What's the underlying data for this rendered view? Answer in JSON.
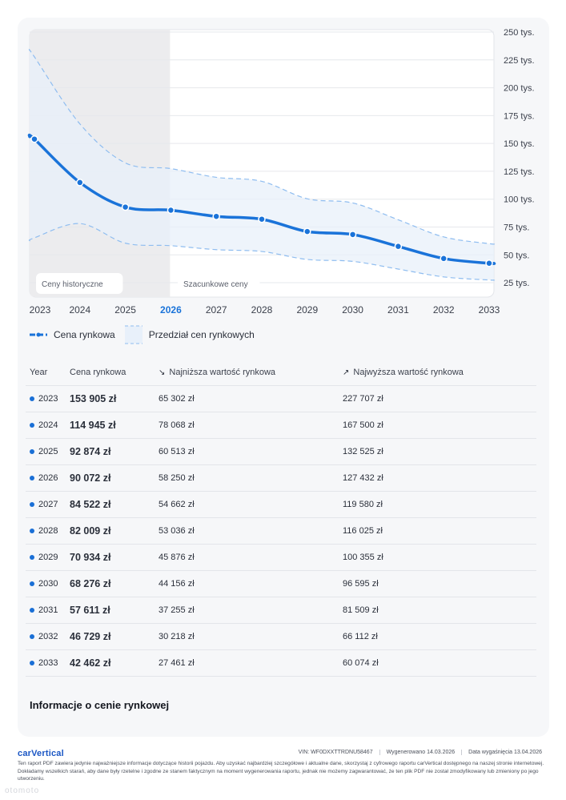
{
  "chart_data": {
    "type": "line",
    "title": "",
    "xlabel": "",
    "ylabel": "",
    "categories": [
      "2023",
      "2024",
      "2025",
      "2026",
      "2027",
      "2028",
      "2029",
      "2030",
      "2031",
      "2032",
      "2033"
    ],
    "highlight_category": "2026",
    "y_ticks": [
      25000,
      50000,
      75000,
      100000,
      125000,
      150000,
      175000,
      200000,
      225000,
      250000
    ],
    "y_tick_labels": [
      "25 tys.",
      "50 tys.",
      "75 tys.",
      "100 tys.",
      "125 tys.",
      "150 tys.",
      "175 tys.",
      "200 tys.",
      "225 tys.",
      "250 tys."
    ],
    "ylim": [
      20000,
      250000
    ],
    "series": [
      {
        "name": "Cena rynkowa",
        "values": [
          153905,
          114945,
          92874,
          90072,
          84522,
          82009,
          70934,
          68276,
          57611,
          46729,
          42462
        ]
      },
      {
        "name": "Najniższa wartość rynkowa",
        "values": [
          65302,
          78068,
          60513,
          58250,
          54662,
          53036,
          45876,
          44156,
          37255,
          30218,
          27461
        ]
      },
      {
        "name": "Najwyższa wartość rynkowa",
        "values": [
          227707,
          167500,
          132525,
          127432,
          119580,
          116025,
          100355,
          96595,
          81509,
          66112,
          60074
        ]
      }
    ],
    "regions": {
      "historical_label": "Ceny historyczne",
      "forecast_label": "Szacunkowe ceny"
    },
    "legend": [
      "Cena rynkowa",
      "Przedział cen rynkowych"
    ],
    "colors": {
      "line": "#1a73d9",
      "band_fill": "#e8f0fa",
      "band_stroke": "#8fbdf0",
      "historical_bg": "#ececee",
      "grid": "#e6e8ec"
    }
  },
  "table": {
    "headers": [
      "Year",
      "Cena rynkowa",
      "Najniższa wartość rynkowa",
      "Najwyższa wartość rynkowa"
    ],
    "low_icon": "arrow-down-right-icon",
    "high_icon": "arrow-up-right-icon",
    "rows": [
      {
        "year": "2023",
        "price": "153 905 zł",
        "low": "65 302 zł",
        "high": "227 707 zł"
      },
      {
        "year": "2024",
        "price": "114 945 zł",
        "low": "78 068 zł",
        "high": "167 500 zł"
      },
      {
        "year": "2025",
        "price": "92 874 zł",
        "low": "60 513 zł",
        "high": "132 525 zł"
      },
      {
        "year": "2026",
        "price": "90 072 zł",
        "low": "58 250 zł",
        "high": "127 432 zł"
      },
      {
        "year": "2027",
        "price": "84 522 zł",
        "low": "54 662 zł",
        "high": "119 580 zł"
      },
      {
        "year": "2028",
        "price": "82 009 zł",
        "low": "53 036 zł",
        "high": "116 025 zł"
      },
      {
        "year": "2029",
        "price": "70 934 zł",
        "low": "45 876 zł",
        "high": "100 355 zł"
      },
      {
        "year": "2030",
        "price": "68 276 zł",
        "low": "44 156 zł",
        "high": "96 595 zł"
      },
      {
        "year": "2031",
        "price": "57 611 zł",
        "low": "37 255 zł",
        "high": "81 509 zł"
      },
      {
        "year": "2032",
        "price": "46 729 zł",
        "low": "30 218 zł",
        "high": "66 112 zł"
      },
      {
        "year": "2033",
        "price": "42 462 zł",
        "low": "27 461 zł",
        "high": "60 074 zł"
      }
    ]
  },
  "info_title": "Informacje o cenie rynkowej",
  "footer": {
    "brand": "carVertical",
    "vin": "VIN:  WF0DXXTTRDNU58467",
    "generated": "Wygenerowano  14.03.2026",
    "expires": "Data wygaśnięcia  13.04.2026",
    "disclaimer": "Ten raport PDF zawiera jedynie najważniejsze informacje dotyczące historii pojazdu. Aby uzyskać najbardziej szczegółowe i aktualne dane, skorzystaj z cyfrowego raportu carVertical dostępnego na naszej stronie internetowej. Dokładamy wszelkich starań, aby dane były rzetelne i zgodne ze stanem faktycznym na moment wygenerowania raportu, jednak nie możemy zagwarantować, że ten plik PDF nie został zmodyfikowany lub zmieniony po jego utworzeniu.",
    "watermark": "otomoto"
  }
}
